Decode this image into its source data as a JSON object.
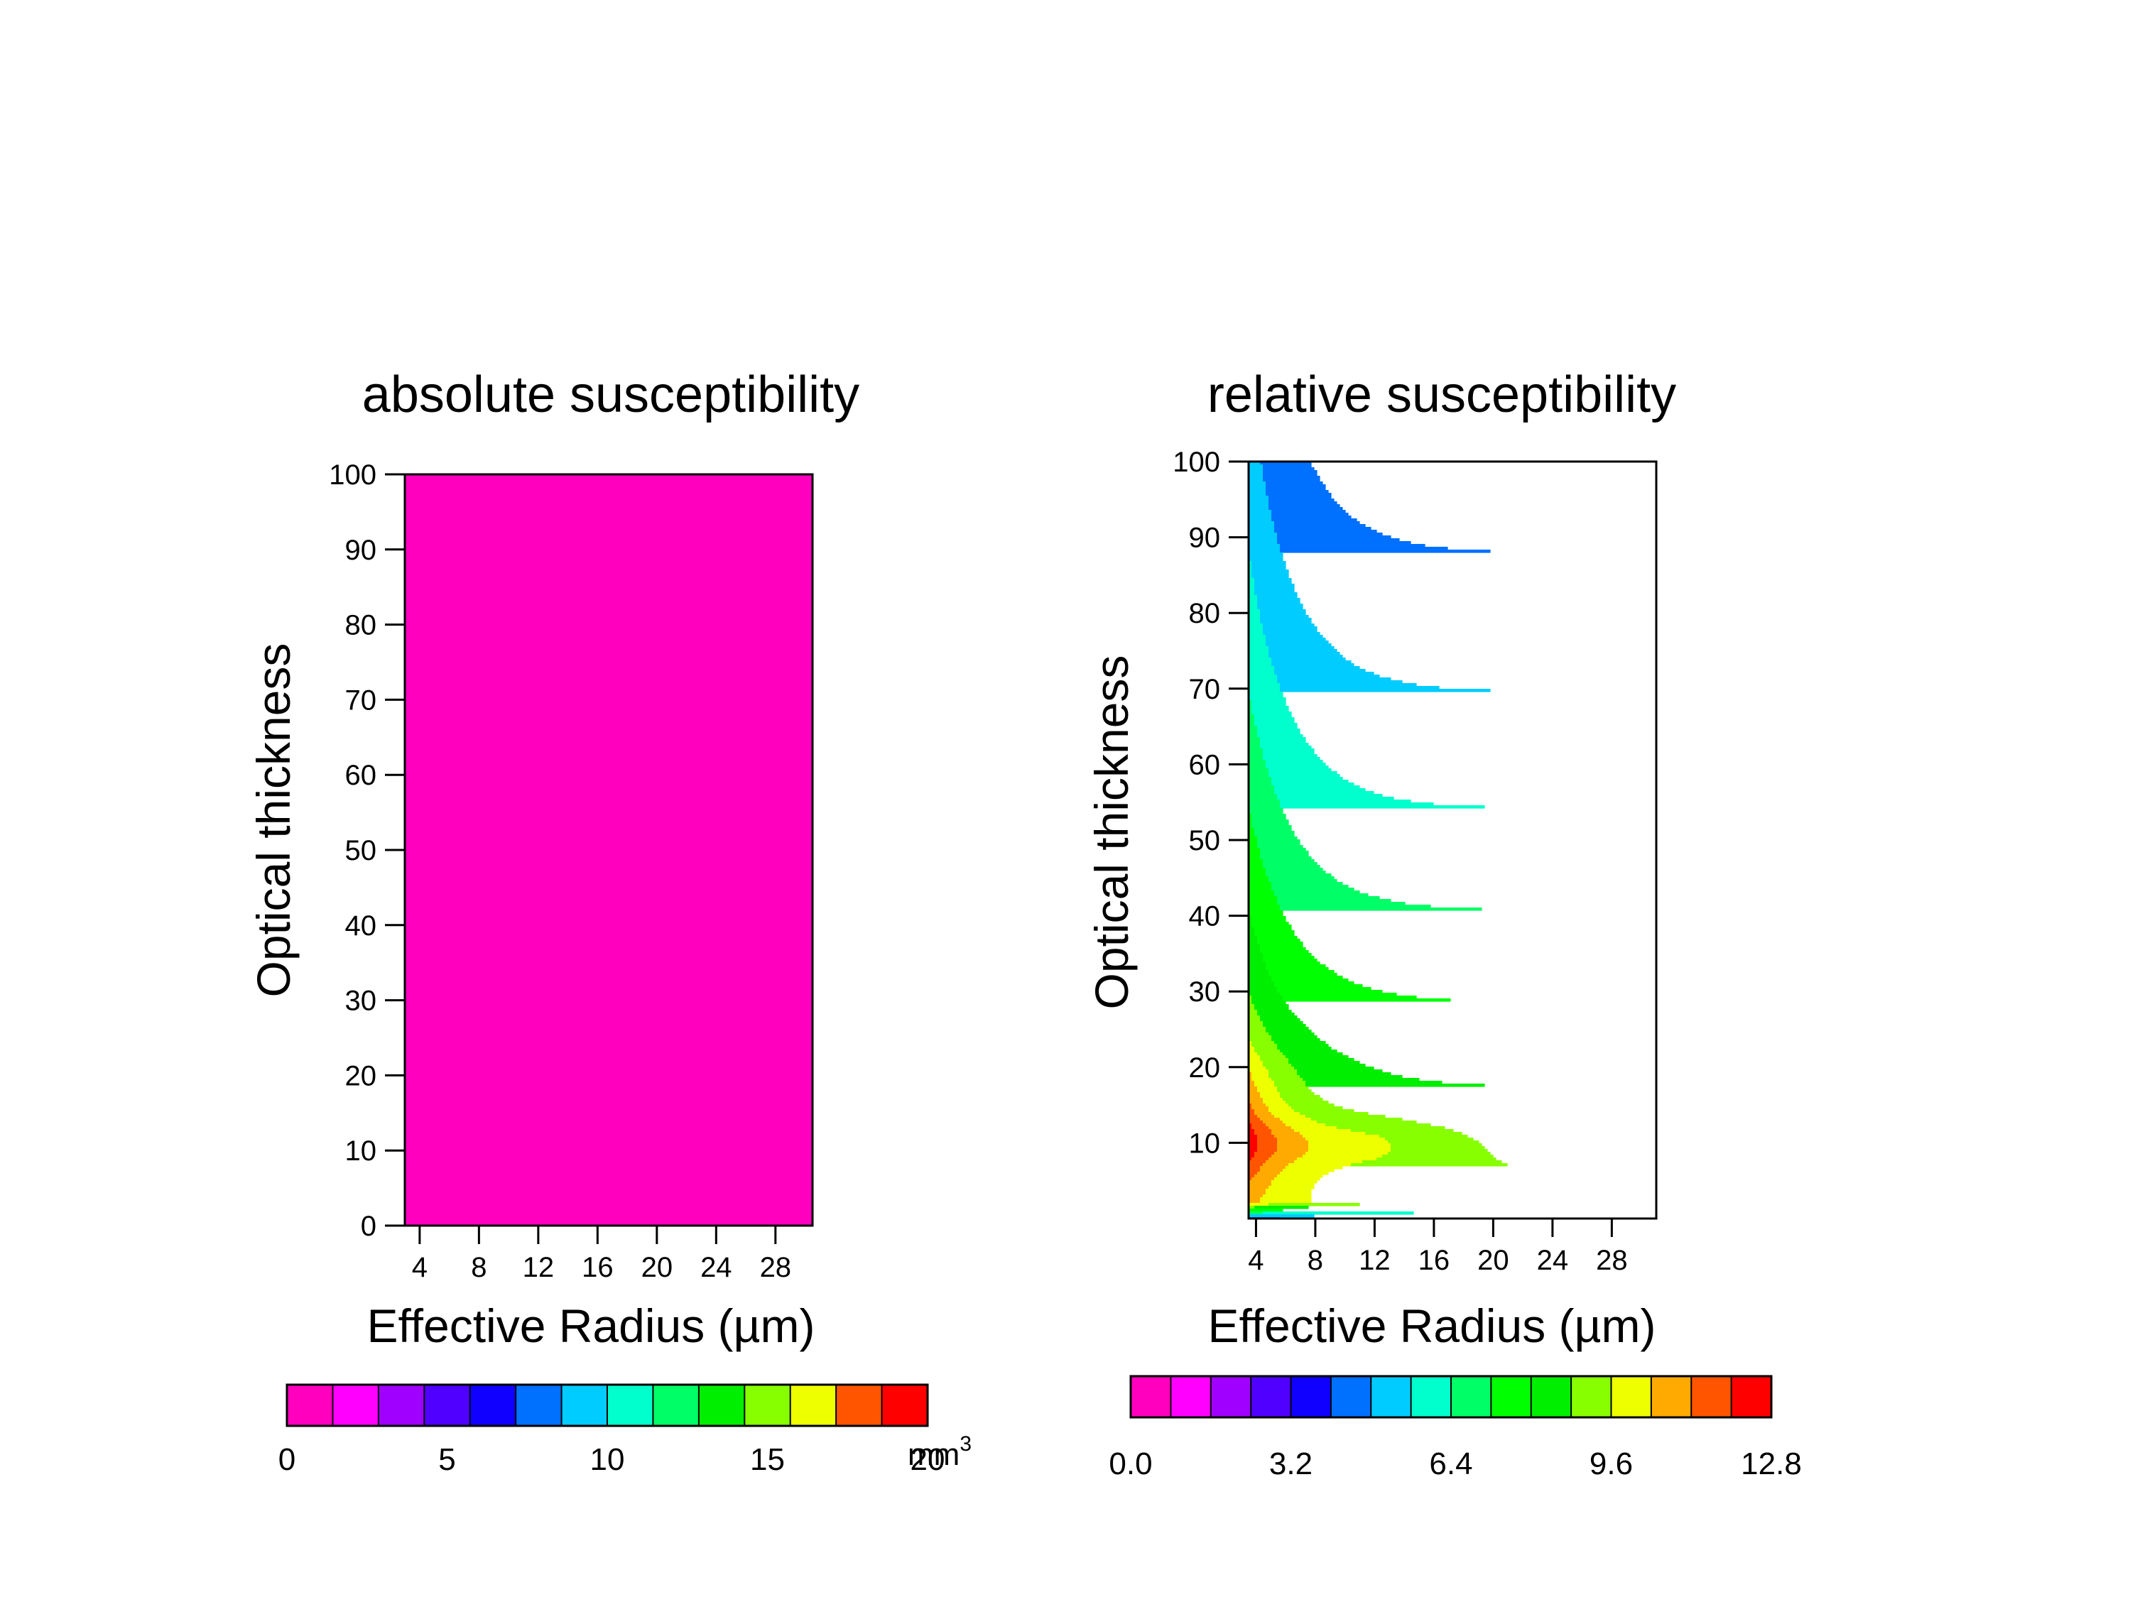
{
  "palette": [
    "#ff00bf",
    "#ff00ff",
    "#a000ff",
    "#5000ff",
    "#1000ff",
    "#0070ff",
    "#00ccff",
    "#00ffcc",
    "#00ff66",
    "#00ff00",
    "#00ee00",
    "#88ff00",
    "#eeff00",
    "#ffaa00",
    "#ff5500",
    "#ff0000"
  ],
  "chart_data": [
    {
      "type": "heatmap",
      "title": "absolute susceptibility",
      "xlabel": "Effective Radius (µm)",
      "ylabel": "Optical thickness",
      "xlim": [
        3,
        30.5
      ],
      "ylim": [
        0,
        100
      ],
      "xticks": [
        "4",
        "8",
        "12",
        "16",
        "20",
        "24",
        "28"
      ],
      "yticks": [
        "0",
        "10",
        "20",
        "30",
        "40",
        "50",
        "60",
        "70",
        "80",
        "90",
        "100"
      ],
      "colorbar": {
        "min": 0,
        "max": 20,
        "levels": 14,
        "tick_labels": [
          "0",
          "5",
          "10",
          "15",
          "20"
        ],
        "unit": "mm",
        "unit_superscript": "3"
      }
    },
    {
      "type": "heatmap",
      "title": "relative susceptibility",
      "xlabel": "Effective Radius (µm)",
      "ylabel": "Optical thickness",
      "xlim": [
        3.5,
        31
      ],
      "ylim": [
        0,
        100
      ],
      "xticks": [
        "4",
        "8",
        "12",
        "16",
        "20",
        "24",
        "28"
      ],
      "yticks": [
        "10",
        "20",
        "30",
        "40",
        "50",
        "60",
        "70",
        "80",
        "90",
        "100"
      ],
      "colorbar": {
        "min": 0.0,
        "max": 12.8,
        "levels": 16,
        "tick_labels": [
          "0.0",
          "3.2",
          "6.4",
          "9.6",
          "12.8"
        ],
        "unit": "",
        "unit_superscript": ""
      }
    }
  ]
}
